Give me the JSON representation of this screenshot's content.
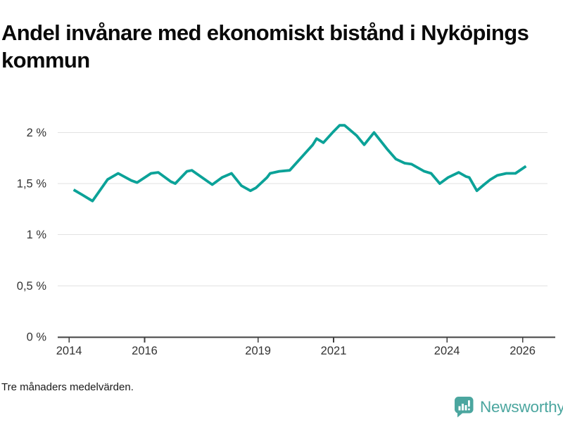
{
  "header": {
    "title": "Andel invånare med ekonomiskt bistånd i Nyköpings kommun"
  },
  "footer": {
    "note": "Tre månaders medelvärden."
  },
  "branding": {
    "name": "Newsworthy",
    "icon": "bar-chart-speech-bubble-icon",
    "color": "#4BA69F"
  },
  "colors": {
    "line": "#0BA298",
    "grid": "#E2E2E2",
    "axis": "#404040",
    "tick_label": "#333333"
  },
  "chart_data": {
    "type": "line",
    "title": "Andel invånare med ekonomiskt bistånd i Nyköpings kommun",
    "subtitle": "Tre månaders medelvärden.",
    "unit": "%",
    "grid": "horizontal",
    "legend": "none",
    "x_domain": [
      2013.7,
      2026.66
    ],
    "y_domain": [
      0,
      2.2
    ],
    "x_ticks": [
      {
        "value": 2014,
        "label": "2014"
      },
      {
        "value": 2016,
        "label": "2016"
      },
      {
        "value": 2019,
        "label": "2019"
      },
      {
        "value": 2021,
        "label": "2021"
      },
      {
        "value": 2024,
        "label": "2024"
      },
      {
        "value": 2026,
        "label": "2026"
      }
    ],
    "y_ticks": [
      {
        "value": 0,
        "label": "0 %"
      },
      {
        "value": 0.5,
        "label": "0,5 %"
      },
      {
        "value": 1,
        "label": "1 %"
      },
      {
        "value": 1.5,
        "label": "1,5 %"
      },
      {
        "value": 2,
        "label": "2 %"
      }
    ],
    "series": [
      {
        "points": [
          [
            2014.12,
            1.44
          ],
          [
            2014.35,
            1.39
          ],
          [
            2014.62,
            1.33
          ],
          [
            2015.02,
            1.54
          ],
          [
            2015.3,
            1.6
          ],
          [
            2015.65,
            1.53
          ],
          [
            2015.8,
            1.51
          ],
          [
            2016.17,
            1.6
          ],
          [
            2016.36,
            1.61
          ],
          [
            2016.69,
            1.52
          ],
          [
            2016.81,
            1.5
          ],
          [
            2017.12,
            1.62
          ],
          [
            2017.25,
            1.63
          ],
          [
            2017.79,
            1.49
          ],
          [
            2018.05,
            1.56
          ],
          [
            2018.3,
            1.6
          ],
          [
            2018.56,
            1.48
          ],
          [
            2018.8,
            1.43
          ],
          [
            2018.95,
            1.46
          ],
          [
            2019.24,
            1.56
          ],
          [
            2019.32,
            1.6
          ],
          [
            2019.56,
            1.62
          ],
          [
            2019.84,
            1.63
          ],
          [
            2020.23,
            1.79
          ],
          [
            2020.45,
            1.88
          ],
          [
            2020.55,
            1.94
          ],
          [
            2020.73,
            1.9
          ],
          [
            2021.0,
            2.01
          ],
          [
            2021.16,
            2.07
          ],
          [
            2021.29,
            2.07
          ],
          [
            2021.61,
            1.97
          ],
          [
            2021.81,
            1.88
          ],
          [
            2022.07,
            2.0
          ],
          [
            2022.41,
            1.84
          ],
          [
            2022.65,
            1.74
          ],
          [
            2022.88,
            1.7
          ],
          [
            2023.06,
            1.69
          ],
          [
            2023.4,
            1.62
          ],
          [
            2023.58,
            1.6
          ],
          [
            2023.81,
            1.5
          ],
          [
            2024.03,
            1.56
          ],
          [
            2024.31,
            1.61
          ],
          [
            2024.5,
            1.57
          ],
          [
            2024.59,
            1.56
          ],
          [
            2024.79,
            1.43
          ],
          [
            2024.98,
            1.49
          ],
          [
            2025.15,
            1.54
          ],
          [
            2025.33,
            1.58
          ],
          [
            2025.57,
            1.6
          ],
          [
            2025.81,
            1.6
          ],
          [
            2026.09,
            1.67
          ]
        ]
      }
    ]
  }
}
